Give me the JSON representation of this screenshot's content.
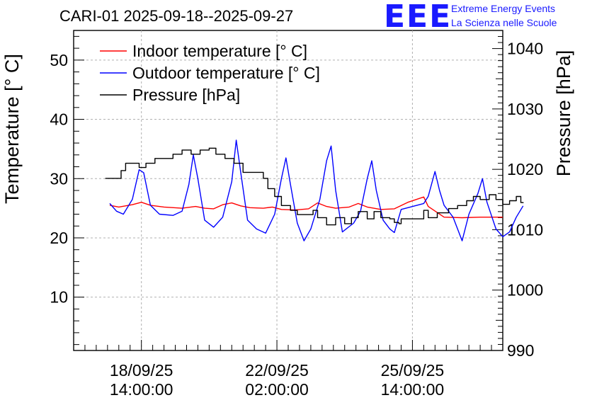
{
  "header": {
    "title": "CARI-01 2025-09-18--2025-09-27",
    "logo_text": "EEE",
    "subtitle_line1": "Extreme Energy Events",
    "subtitle_line2": "La Scienza nelle Scuole",
    "brand_color": "#1a1aff"
  },
  "chart_data": {
    "type": "line",
    "title": "CARI-01 2025-09-18--2025-09-27",
    "xlabel": "",
    "ylabel": "Temperature [° C]",
    "y2label": "Pressure [hPa]",
    "ylim": [
      1,
      55
    ],
    "y2lim": [
      990,
      1043
    ],
    "yticks": [
      10,
      20,
      30,
      40,
      50
    ],
    "y2ticks": [
      990,
      1000,
      1010,
      1020,
      1030,
      1040
    ],
    "xlim": [
      0,
      9.5
    ],
    "xticks": [
      {
        "x": 1.5,
        "date": "18/09/25",
        "time": "14:00:00"
      },
      {
        "x": 4.5,
        "date": "22/09/25",
        "time": "02:00:00"
      },
      {
        "x": 7.5,
        "date": "25/09/25",
        "time": "14:00:00"
      }
    ],
    "grid": true,
    "legend_position": "top-left",
    "series": [
      {
        "name": "Indoor temperature [° C]",
        "axis": "left",
        "color": "#ff0000",
        "points": [
          [
            0.8,
            25.5
          ],
          [
            1.0,
            25.2
          ],
          [
            1.3,
            25.6
          ],
          [
            1.5,
            26.0
          ],
          [
            1.7,
            25.5
          ],
          [
            2.0,
            25.2
          ],
          [
            2.4,
            25.0
          ],
          [
            2.7,
            25.3
          ],
          [
            2.9,
            25.0
          ],
          [
            3.1,
            24.9
          ],
          [
            3.3,
            25.6
          ],
          [
            3.5,
            25.9
          ],
          [
            3.7,
            25.4
          ],
          [
            3.9,
            25.1
          ],
          [
            4.2,
            25.0
          ],
          [
            4.4,
            25.2
          ],
          [
            4.6,
            24.8
          ],
          [
            4.9,
            24.7
          ],
          [
            5.2,
            24.9
          ],
          [
            5.4,
            25.9
          ],
          [
            5.6,
            25.3
          ],
          [
            5.8,
            25.0
          ],
          [
            6.1,
            25.2
          ],
          [
            6.3,
            25.8
          ],
          [
            6.5,
            25.2
          ],
          [
            6.8,
            24.8
          ],
          [
            7.1,
            24.9
          ],
          [
            7.4,
            26.0
          ],
          [
            7.75,
            26.9
          ],
          [
            7.85,
            25.3
          ],
          [
            8.2,
            23.5
          ],
          [
            8.6,
            23.4
          ],
          [
            9.0,
            23.5
          ],
          [
            9.5,
            23.5
          ]
        ]
      },
      {
        "name": "Outdoor temperature [° C]",
        "axis": "left",
        "color": "#0000ff",
        "points": [
          [
            0.8,
            25.8
          ],
          [
            0.95,
            24.5
          ],
          [
            1.1,
            24.0
          ],
          [
            1.3,
            26.5
          ],
          [
            1.45,
            31.5
          ],
          [
            1.55,
            31.0
          ],
          [
            1.7,
            25.5
          ],
          [
            1.9,
            24.0
          ],
          [
            2.2,
            23.8
          ],
          [
            2.4,
            24.5
          ],
          [
            2.55,
            29.0
          ],
          [
            2.65,
            34.0
          ],
          [
            2.75,
            30.0
          ],
          [
            2.9,
            23.0
          ],
          [
            3.1,
            21.8
          ],
          [
            3.3,
            23.5
          ],
          [
            3.5,
            29.5
          ],
          [
            3.6,
            36.5
          ],
          [
            3.7,
            31.0
          ],
          [
            3.85,
            23.0
          ],
          [
            4.05,
            21.5
          ],
          [
            4.25,
            20.8
          ],
          [
            4.45,
            24.0
          ],
          [
            4.6,
            30.0
          ],
          [
            4.7,
            33.5
          ],
          [
            4.8,
            29.0
          ],
          [
            4.95,
            22.5
          ],
          [
            5.1,
            19.5
          ],
          [
            5.25,
            21.5
          ],
          [
            5.45,
            26.5
          ],
          [
            5.6,
            33.0
          ],
          [
            5.7,
            35.5
          ],
          [
            5.8,
            28.0
          ],
          [
            5.95,
            21.0
          ],
          [
            6.2,
            22.5
          ],
          [
            6.35,
            24.5
          ],
          [
            6.5,
            30.0
          ],
          [
            6.6,
            33.0
          ],
          [
            6.7,
            28.0
          ],
          [
            6.85,
            23.0
          ],
          [
            7.0,
            21.5
          ],
          [
            7.1,
            20.9
          ],
          [
            7.25,
            24.8
          ],
          [
            7.75,
            25.8
          ],
          [
            7.85,
            27.0
          ],
          [
            8.0,
            31.2
          ],
          [
            8.1,
            28.0
          ],
          [
            8.2,
            25.5
          ],
          [
            8.4,
            23.5
          ],
          [
            8.6,
            19.5
          ],
          [
            8.75,
            24.0
          ],
          [
            8.95,
            27.5
          ],
          [
            9.05,
            30.0
          ],
          [
            9.15,
            26.0
          ],
          [
            9.35,
            21.5
          ],
          [
            9.5,
            20.2
          ],
          [
            9.65,
            21.0
          ],
          [
            9.8,
            23.5
          ],
          [
            9.95,
            25.4
          ]
        ]
      },
      {
        "name": "Pressure [hPa]",
        "axis": "right",
        "color": "#000000",
        "points": [
          [
            0.7,
            1018.5
          ],
          [
            0.95,
            1018.5
          ],
          [
            1.05,
            1019.8
          ],
          [
            1.15,
            1021.0
          ],
          [
            1.4,
            1021.0
          ],
          [
            1.45,
            1020.3
          ],
          [
            1.6,
            1021.0
          ],
          [
            1.8,
            1021.8
          ],
          [
            2.05,
            1021.8
          ],
          [
            2.2,
            1022.5
          ],
          [
            2.4,
            1023.2
          ],
          [
            2.6,
            1022.5
          ],
          [
            2.8,
            1023.2
          ],
          [
            3.0,
            1023.5
          ],
          [
            3.15,
            1022.5
          ],
          [
            3.35,
            1021.8
          ],
          [
            3.55,
            1021.0
          ],
          [
            3.75,
            1019.5
          ],
          [
            4.05,
            1019.5
          ],
          [
            4.2,
            1018.5
          ],
          [
            4.3,
            1016.8
          ],
          [
            4.45,
            1015.5
          ],
          [
            4.6,
            1014.0
          ],
          [
            4.8,
            1013.2
          ],
          [
            4.95,
            1012.5
          ],
          [
            5.2,
            1012.5
          ],
          [
            5.3,
            1013.2
          ],
          [
            5.4,
            1012.0
          ],
          [
            5.6,
            1010.8
          ],
          [
            5.8,
            1012.0
          ],
          [
            6.0,
            1011.0
          ],
          [
            6.15,
            1012.0
          ],
          [
            6.3,
            1013.0
          ],
          [
            6.5,
            1011.8
          ],
          [
            6.65,
            1013.0
          ],
          [
            6.8,
            1012.0
          ],
          [
            7.0,
            1011.8
          ],
          [
            7.1,
            1011.2
          ],
          [
            7.2,
            1011.0
          ],
          [
            7.25,
            1011.8
          ],
          [
            7.75,
            1013.2
          ],
          [
            7.85,
            1012.0
          ],
          [
            8.05,
            1012.8
          ],
          [
            8.3,
            1013.5
          ],
          [
            8.5,
            1014.0
          ],
          [
            8.7,
            1014.8
          ],
          [
            8.85,
            1015.5
          ],
          [
            9.0,
            1015.0
          ],
          [
            9.2,
            1015.8
          ],
          [
            9.35,
            1015.0
          ],
          [
            9.5,
            1014.2
          ],
          [
            9.65,
            1014.8
          ],
          [
            9.8,
            1015.5
          ],
          [
            9.9,
            1014.5
          ],
          [
            9.95,
            1014.4
          ]
        ]
      }
    ]
  }
}
